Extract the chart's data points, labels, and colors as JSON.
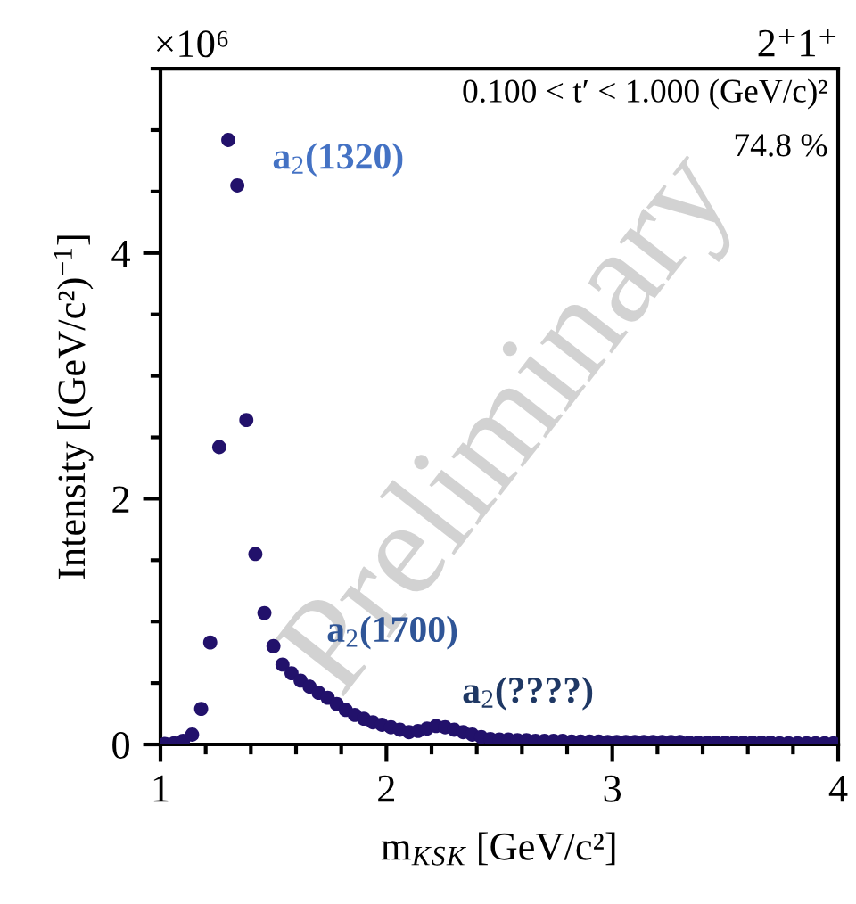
{
  "chart_data": {
    "type": "scatter",
    "title": "2⁺1⁺",
    "xlabel": "m$_{K}$$_{S}$$_{K}$ [GeV/c²]",
    "ylabel": "Intensity [(GeV/c²)$^{−1}$]",
    "x": [
      1.02,
      1.06,
      1.1,
      1.14,
      1.18,
      1.22,
      1.26,
      1.3,
      1.34,
      1.38,
      1.42,
      1.46,
      1.5,
      1.54,
      1.58,
      1.62,
      1.66,
      1.7,
      1.74,
      1.78,
      1.82,
      1.86,
      1.9,
      1.94,
      1.98,
      2.02,
      2.06,
      2.1,
      2.14,
      2.18,
      2.22,
      2.26,
      2.3,
      2.34,
      2.38,
      2.42,
      2.46,
      2.5,
      2.54,
      2.58,
      2.62,
      2.66,
      2.7,
      2.74,
      2.78,
      2.82,
      2.86,
      2.9,
      2.94,
      2.98,
      3.02,
      3.06,
      3.1,
      3.14,
      3.18,
      3.22,
      3.26,
      3.3,
      3.34,
      3.38,
      3.42,
      3.46,
      3.5,
      3.54,
      3.58,
      3.62,
      3.66,
      3.7,
      3.74,
      3.78,
      3.82,
      3.86,
      3.9,
      3.94,
      3.98
    ],
    "series": [
      {
        "color": "#22116b",
        "values": [
          0.005,
          0.01,
          0.03,
          0.08,
          0.29,
          0.83,
          2.42,
          4.92,
          4.55,
          2.64,
          1.55,
          1.07,
          0.8,
          0.65,
          0.58,
          0.52,
          0.47,
          0.42,
          0.38,
          0.33,
          0.28,
          0.24,
          0.21,
          0.18,
          0.16,
          0.14,
          0.12,
          0.1,
          0.11,
          0.13,
          0.15,
          0.14,
          0.12,
          0.1,
          0.08,
          0.06,
          0.045,
          0.04,
          0.04,
          0.035,
          0.035,
          0.03,
          0.03,
          0.03,
          0.03,
          0.025,
          0.025,
          0.025,
          0.025,
          0.02,
          0.02,
          0.02,
          0.02,
          0.02,
          0.02,
          0.02,
          0.02,
          0.02,
          0.015,
          0.015,
          0.015,
          0.015,
          0.015,
          0.015,
          0.015,
          0.015,
          0.015,
          0.015,
          0.01,
          0.01,
          0.01,
          0.01,
          0.01,
          0.01,
          0.01
        ]
      }
    ],
    "xlim": [
      1,
      4
    ],
    "xticks": [
      1,
      2,
      3,
      4,
      {
        "value": 1.2,
        "label": null
      },
      {
        "value": 1.4,
        "label": null
      },
      {
        "value": 1.6,
        "label": null
      },
      {
        "value": 1.8,
        "label": null
      },
      {
        "value": 2.2,
        "label": null
      },
      {
        "value": 2.4,
        "label": null
      },
      {
        "value": 2.6,
        "label": null
      },
      {
        "value": 2.8,
        "label": null
      },
      {
        "value": 3.2,
        "label": null
      },
      {
        "value": 3.4,
        "label": null
      },
      {
        "value": 3.6,
        "label": null
      },
      {
        "value": 3.8,
        "label": null
      }
    ],
    "ylim": [
      0,
      5.5
    ],
    "yticks": [
      0,
      2,
      4,
      {
        "value": 0.5,
        "label": null
      },
      {
        "value": 1,
        "label": null
      },
      {
        "value": 1.5,
        "label": null
      },
      {
        "value": 2.5,
        "label": null
      },
      {
        "value": 3,
        "label": null
      },
      {
        "value": 3.5,
        "label": null
      },
      {
        "value": 4.5,
        "label": null
      },
      {
        "value": 5,
        "label": null
      },
      {
        "value": 5.5,
        "label": null
      }
    ],
    "marker": "circle",
    "grid": false,
    "legend": false,
    "annotations": [
      "×10⁶",
      "0.100 < t′ < 1.000 (GeV/c)²",
      "74.8 %",
      "Preliminary",
      "a$_{2}$(1320)",
      "a$_{2}$(1700)",
      "a$_{2}$(????)"
    ]
  }
}
